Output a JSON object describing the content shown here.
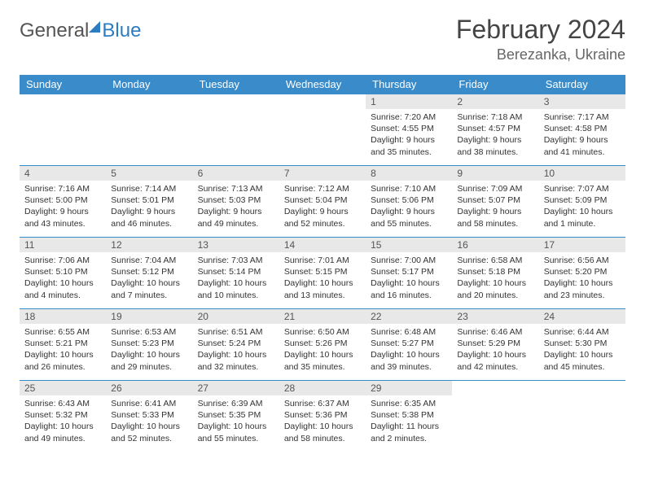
{
  "brand": {
    "part1": "General",
    "part2": "Blue"
  },
  "title": "February 2024",
  "location": "Berezanka, Ukraine",
  "colors": {
    "header_bg": "#3a8bc9",
    "header_fg": "#ffffff",
    "daynum_bg": "#e8e8e8",
    "border": "#3a8bc9",
    "text": "#333333"
  },
  "weekdays": [
    "Sunday",
    "Monday",
    "Tuesday",
    "Wednesday",
    "Thursday",
    "Friday",
    "Saturday"
  ],
  "weeks": [
    [
      null,
      null,
      null,
      null,
      {
        "n": "1",
        "sr": "7:20 AM",
        "ss": "4:55 PM",
        "dl": "9 hours and 35 minutes."
      },
      {
        "n": "2",
        "sr": "7:18 AM",
        "ss": "4:57 PM",
        "dl": "9 hours and 38 minutes."
      },
      {
        "n": "3",
        "sr": "7:17 AM",
        "ss": "4:58 PM",
        "dl": "9 hours and 41 minutes."
      }
    ],
    [
      {
        "n": "4",
        "sr": "7:16 AM",
        "ss": "5:00 PM",
        "dl": "9 hours and 43 minutes."
      },
      {
        "n": "5",
        "sr": "7:14 AM",
        "ss": "5:01 PM",
        "dl": "9 hours and 46 minutes."
      },
      {
        "n": "6",
        "sr": "7:13 AM",
        "ss": "5:03 PM",
        "dl": "9 hours and 49 minutes."
      },
      {
        "n": "7",
        "sr": "7:12 AM",
        "ss": "5:04 PM",
        "dl": "9 hours and 52 minutes."
      },
      {
        "n": "8",
        "sr": "7:10 AM",
        "ss": "5:06 PM",
        "dl": "9 hours and 55 minutes."
      },
      {
        "n": "9",
        "sr": "7:09 AM",
        "ss": "5:07 PM",
        "dl": "9 hours and 58 minutes."
      },
      {
        "n": "10",
        "sr": "7:07 AM",
        "ss": "5:09 PM",
        "dl": "10 hours and 1 minute."
      }
    ],
    [
      {
        "n": "11",
        "sr": "7:06 AM",
        "ss": "5:10 PM",
        "dl": "10 hours and 4 minutes."
      },
      {
        "n": "12",
        "sr": "7:04 AM",
        "ss": "5:12 PM",
        "dl": "10 hours and 7 minutes."
      },
      {
        "n": "13",
        "sr": "7:03 AM",
        "ss": "5:14 PM",
        "dl": "10 hours and 10 minutes."
      },
      {
        "n": "14",
        "sr": "7:01 AM",
        "ss": "5:15 PM",
        "dl": "10 hours and 13 minutes."
      },
      {
        "n": "15",
        "sr": "7:00 AM",
        "ss": "5:17 PM",
        "dl": "10 hours and 16 minutes."
      },
      {
        "n": "16",
        "sr": "6:58 AM",
        "ss": "5:18 PM",
        "dl": "10 hours and 20 minutes."
      },
      {
        "n": "17",
        "sr": "6:56 AM",
        "ss": "5:20 PM",
        "dl": "10 hours and 23 minutes."
      }
    ],
    [
      {
        "n": "18",
        "sr": "6:55 AM",
        "ss": "5:21 PM",
        "dl": "10 hours and 26 minutes."
      },
      {
        "n": "19",
        "sr": "6:53 AM",
        "ss": "5:23 PM",
        "dl": "10 hours and 29 minutes."
      },
      {
        "n": "20",
        "sr": "6:51 AM",
        "ss": "5:24 PM",
        "dl": "10 hours and 32 minutes."
      },
      {
        "n": "21",
        "sr": "6:50 AM",
        "ss": "5:26 PM",
        "dl": "10 hours and 35 minutes."
      },
      {
        "n": "22",
        "sr": "6:48 AM",
        "ss": "5:27 PM",
        "dl": "10 hours and 39 minutes."
      },
      {
        "n": "23",
        "sr": "6:46 AM",
        "ss": "5:29 PM",
        "dl": "10 hours and 42 minutes."
      },
      {
        "n": "24",
        "sr": "6:44 AM",
        "ss": "5:30 PM",
        "dl": "10 hours and 45 minutes."
      }
    ],
    [
      {
        "n": "25",
        "sr": "6:43 AM",
        "ss": "5:32 PM",
        "dl": "10 hours and 49 minutes."
      },
      {
        "n": "26",
        "sr": "6:41 AM",
        "ss": "5:33 PM",
        "dl": "10 hours and 52 minutes."
      },
      {
        "n": "27",
        "sr": "6:39 AM",
        "ss": "5:35 PM",
        "dl": "10 hours and 55 minutes."
      },
      {
        "n": "28",
        "sr": "6:37 AM",
        "ss": "5:36 PM",
        "dl": "10 hours and 58 minutes."
      },
      {
        "n": "29",
        "sr": "6:35 AM",
        "ss": "5:38 PM",
        "dl": "11 hours and 2 minutes."
      },
      null,
      null
    ]
  ],
  "labels": {
    "sunrise": "Sunrise: ",
    "sunset": "Sunset: ",
    "daylight": "Daylight: "
  }
}
